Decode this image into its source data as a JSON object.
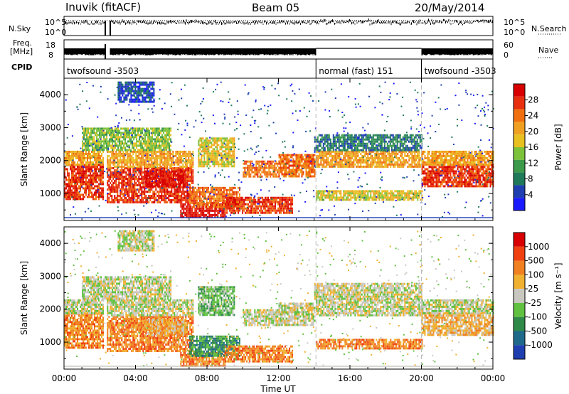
{
  "header": {
    "station": "Inuvik (fitACF)",
    "beam": "Beam 05",
    "date": "20/May/2014"
  },
  "noise_panel": {
    "left_label": "N.Sky",
    "left_ticks": [
      "10^5",
      "10^0"
    ],
    "right_label": "N.Search",
    "right_ticks": [
      "10^5",
      "10^0"
    ]
  },
  "freq_panel": {
    "left_label_line1": "Freq.",
    "left_label_line2": "[MHz]",
    "left_ticks": [
      "18",
      "8"
    ],
    "right_label": "Nave",
    "right_ticks": [
      "60",
      "0"
    ]
  },
  "cpid_panel": {
    "label": "CPID",
    "segments": [
      {
        "name": "twofsound -3503",
        "start_hour": 0,
        "end_hour": 14.1
      },
      {
        "name": "normal (fast) 151",
        "start_hour": 14.1,
        "end_hour": 20.0
      },
      {
        "name": "twofsound -3503",
        "start_hour": 20.0,
        "end_hour": 24
      }
    ]
  },
  "chart_data": [
    {
      "type": "heatmap",
      "name": "power",
      "ylabel": "Slant Range [km]",
      "yticks": [
        "4000",
        "3000",
        "2000",
        "1000"
      ],
      "ylim": [
        180,
        4500
      ],
      "xlim": [
        0,
        24
      ],
      "colorbar": {
        "label": "Power [dB]",
        "ticks": [
          "28",
          "24",
          "20",
          "16",
          "12",
          "8",
          "4"
        ],
        "range": [
          0,
          32
        ],
        "colors": [
          "#1a1aff",
          "#1f3fb0",
          "#1f7a5a",
          "#3c9a4a",
          "#7cc23a",
          "#e8c020",
          "#f0a020",
          "#f07010",
          "#e83010",
          "#d80000"
        ]
      }
    },
    {
      "type": "heatmap",
      "name": "velocity",
      "ylabel": "Slant Range [km]",
      "yticks": [
        "4000",
        "3000",
        "2000",
        "1000"
      ],
      "ylim": [
        180,
        4500
      ],
      "xlim": [
        0,
        24
      ],
      "colorbar": {
        "label": "Velocity [m s⁻¹]",
        "ticks": [
          "1000",
          "500",
          "100",
          "25",
          "-25",
          "-100",
          "-500",
          "-1000"
        ],
        "colors": [
          "#1f3fb0",
          "#1f6a8a",
          "#2f8a4a",
          "#60c040",
          "#c8c8c0",
          "#f0b030",
          "#f08020",
          "#f04010",
          "#d80000"
        ]
      }
    }
  ],
  "time_axis": {
    "xlabel": "Time UT",
    "ticks": [
      "00:00",
      "04:00",
      "08:00",
      "12:00",
      "16:00",
      "20:00",
      "00:00"
    ]
  }
}
